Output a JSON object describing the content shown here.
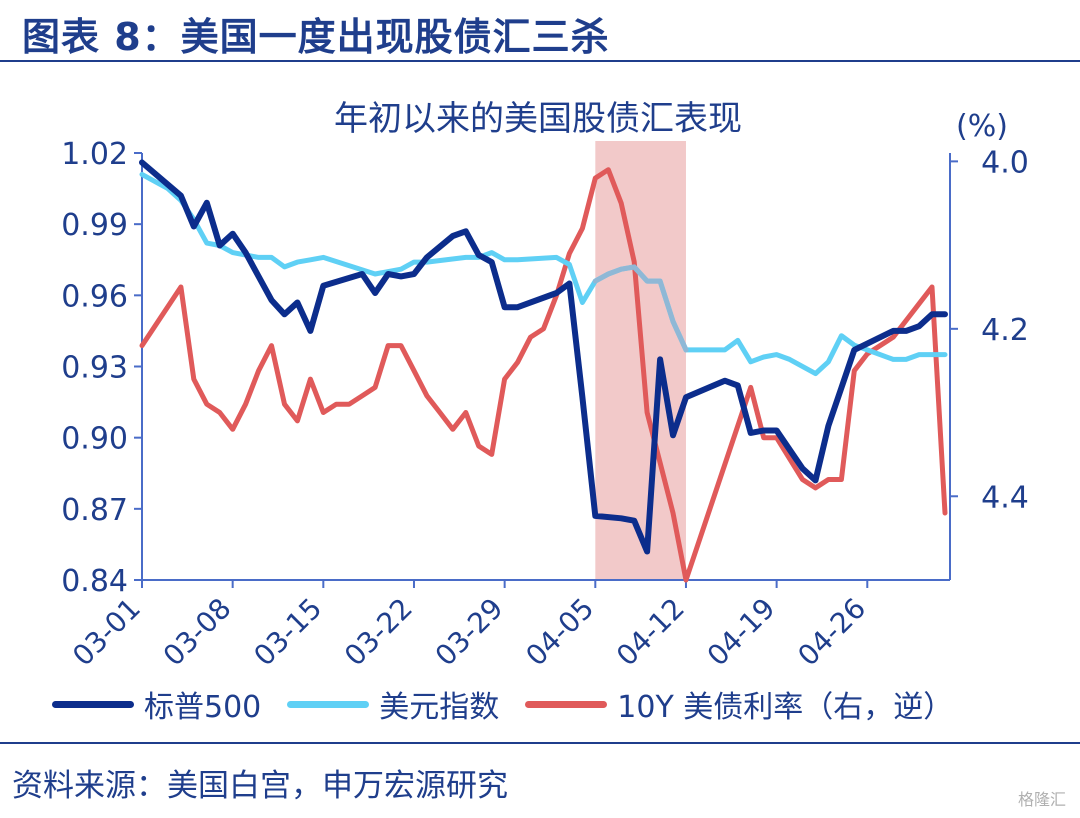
{
  "figure_title": "图表 8：美国一度出现股债汇三杀",
  "source_text": "资料来源：美国白宫，申万宏源研究",
  "watermark": "格隆汇",
  "colors": {
    "spx": "#0c2d8c",
    "dxy": "#5fd0f5",
    "ust": "#e05a5a",
    "shade": "#f2c9c9",
    "text": "#1f3e8c",
    "axis": "#4a6cc8"
  },
  "chart_data": {
    "type": "line",
    "title": "年初以来的美国股债汇表现",
    "right_unit": "(%)",
    "x_ticks": [
      "03-01",
      "03-08",
      "03-15",
      "03-22",
      "03-29",
      "04-05",
      "04-12",
      "04-19",
      "04-26"
    ],
    "x_tick_positions": [
      0,
      7,
      14,
      21,
      28,
      35,
      42,
      49,
      56
    ],
    "x_range": [
      0,
      62
    ],
    "left_axis": {
      "ticks": [
        "1.02",
        "0.99",
        "0.96",
        "0.93",
        "0.90",
        "0.87",
        "0.84"
      ],
      "range": [
        0.84,
        1.02
      ]
    },
    "right_axis": {
      "ticks": [
        "4.0",
        "4.2",
        "4.4"
      ],
      "range": [
        3.99,
        4.5
      ],
      "inverted": true
    },
    "shaded_range": [
      35,
      42
    ],
    "series": [
      {
        "name": "标普500",
        "axis": "left",
        "x": [
          0,
          3,
          4,
          5,
          6,
          7,
          8,
          9,
          10,
          11,
          12,
          13,
          14,
          17,
          18,
          19,
          20,
          21,
          22,
          24,
          25,
          26,
          27,
          28,
          29,
          32,
          33,
          34,
          35,
          37,
          38,
          39,
          40,
          41,
          42,
          45,
          46,
          47,
          48,
          49,
          51,
          52,
          53,
          54,
          55,
          58,
          59,
          60,
          61,
          62
        ],
        "y": [
          1.016,
          1.002,
          0.989,
          0.999,
          0.981,
          0.986,
          0.978,
          0.968,
          0.958,
          0.952,
          0.957,
          0.945,
          0.964,
          0.969,
          0.961,
          0.969,
          0.968,
          0.969,
          0.976,
          0.985,
          0.987,
          0.977,
          0.974,
          0.955,
          0.955,
          0.961,
          0.965,
          0.917,
          0.867,
          0.866,
          0.865,
          0.852,
          0.933,
          0.901,
          0.917,
          0.924,
          0.922,
          0.902,
          0.903,
          0.903,
          0.887,
          0.882,
          0.905,
          0.921,
          0.937,
          0.945,
          0.945,
          0.947,
          0.952,
          0.952
        ]
      },
      {
        "name": "美元指数",
        "axis": "left",
        "x": [
          0,
          2,
          3,
          4,
          5,
          6,
          7,
          8,
          9,
          10,
          11,
          12,
          13,
          14,
          18,
          20,
          21,
          22,
          25,
          26,
          27,
          28,
          29,
          32,
          33,
          34,
          35,
          36,
          37,
          38,
          39,
          40,
          41,
          42,
          43,
          45,
          46,
          47,
          48,
          49,
          50,
          52,
          53,
          54,
          55,
          56,
          58,
          59,
          60,
          61,
          62
        ],
        "y": [
          1.011,
          1.005,
          1.0,
          0.992,
          0.982,
          0.981,
          0.978,
          0.977,
          0.976,
          0.976,
          0.972,
          0.974,
          0.975,
          0.976,
          0.969,
          0.971,
          0.974,
          0.974,
          0.976,
          0.976,
          0.978,
          0.975,
          0.975,
          0.976,
          0.973,
          0.957,
          0.966,
          0.969,
          0.971,
          0.972,
          0.966,
          0.966,
          0.949,
          0.937,
          0.937,
          0.937,
          0.941,
          0.932,
          0.934,
          0.935,
          0.933,
          0.927,
          0.932,
          0.943,
          0.939,
          0.937,
          0.933,
          0.933,
          0.935,
          0.935,
          0.935
        ],
        "highlight": {
          "x": [
            35,
            36,
            37,
            38,
            39,
            40,
            41,
            42
          ],
          "y": [
            0.966,
            0.969,
            0.971,
            0.972,
            0.966,
            0.966,
            0.949,
            0.937
          ]
        }
      },
      {
        "name": "10Y 美债利率（右，逆）",
        "axis": "right",
        "x": [
          0,
          3,
          4,
          5,
          6,
          7,
          8,
          9,
          10,
          11,
          12,
          13,
          14,
          15,
          16,
          17,
          18,
          19,
          20,
          21,
          22,
          23,
          24,
          25,
          26,
          27,
          28,
          29,
          30,
          31,
          32,
          33,
          34,
          35,
          36,
          37,
          38,
          39,
          40,
          41,
          42,
          47,
          48,
          49,
          51,
          52,
          53,
          54,
          55,
          56,
          58,
          59,
          60,
          61,
          62
        ],
        "y": [
          4.22,
          4.15,
          4.26,
          4.29,
          4.3,
          4.32,
          4.29,
          4.25,
          4.22,
          4.29,
          4.31,
          4.26,
          4.3,
          4.29,
          4.29,
          4.28,
          4.27,
          4.22,
          4.22,
          4.25,
          4.28,
          4.3,
          4.32,
          4.3,
          4.34,
          4.35,
          4.26,
          4.24,
          4.21,
          4.2,
          4.16,
          4.11,
          4.08,
          4.02,
          4.01,
          4.05,
          4.12,
          4.3,
          4.36,
          4.42,
          4.5,
          4.27,
          4.33,
          4.33,
          4.38,
          4.39,
          4.38,
          4.38,
          4.25,
          4.23,
          4.21,
          4.19,
          4.17,
          4.15,
          4.42
        ]
      }
    ]
  },
  "legend": [
    {
      "label": "标普500",
      "color": "#0c2d8c"
    },
    {
      "label": "美元指数",
      "color": "#5fd0f5"
    },
    {
      "label": "10Y 美债利率（右，逆）",
      "color": "#e05a5a"
    }
  ]
}
